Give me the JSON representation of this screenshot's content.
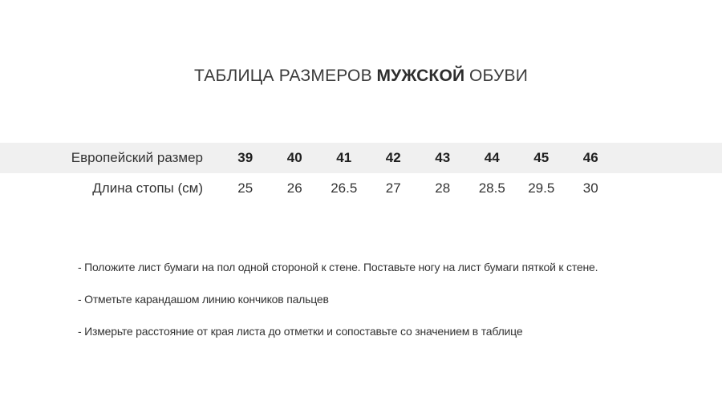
{
  "title": {
    "prefix": "ТАБЛИЦА РАЗМЕРОВ",
    "emphasis": "МУЖСКОЙ",
    "suffix": "ОБУВИ"
  },
  "size_table": {
    "rows": [
      {
        "label": "Европейский размер",
        "values": [
          "39",
          "40",
          "41",
          "42",
          "43",
          "44",
          "45",
          "46"
        ]
      },
      {
        "label": "Длина стопы (см)",
        "values": [
          "25",
          "26",
          "26.5",
          "27",
          "28",
          "28.5",
          "29.5",
          "30"
        ]
      }
    ]
  },
  "instructions": {
    "items": [
      "- Положите лист бумаги на пол одной стороной к стене. Поставьте ногу на лист бумаги пяткой к стене.",
      "- Отметьте карандашом линию кончиков пальцев",
      "- Измерьте расстояние от края листа до отметки и сопоставьте со значением в таблице"
    ]
  },
  "colors": {
    "row_highlight": "#f0f0f0",
    "text": "#333333"
  }
}
